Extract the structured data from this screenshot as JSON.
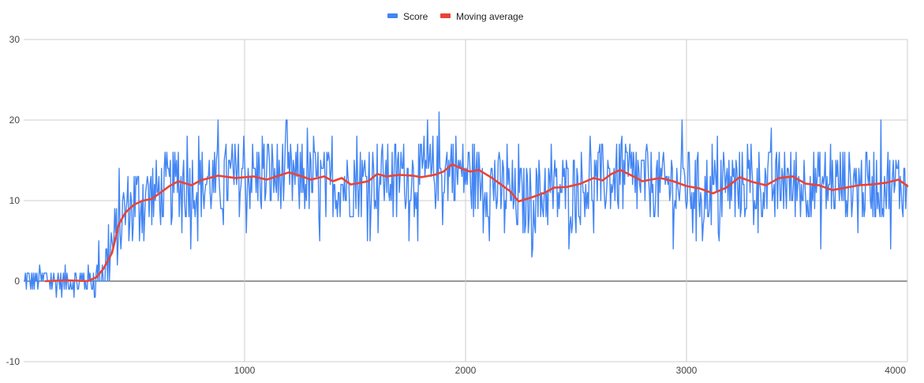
{
  "colors": {
    "score": "#4285f4",
    "moving_average": "#ea4335",
    "grid": "#cccccc",
    "zero_line": "#333333",
    "axis_text": "#444444"
  },
  "chart_data": {
    "type": "line",
    "title": "",
    "xlabel": "",
    "ylabel": "",
    "xlim": [
      0,
      4000
    ],
    "ylim": [
      -10,
      30
    ],
    "x_ticks": [
      1000,
      2000,
      3000,
      4000
    ],
    "y_ticks": [
      -10,
      0,
      10,
      20,
      30
    ],
    "x_tick_labels": [
      "1000",
      "2000",
      "3000",
      "4000"
    ],
    "y_tick_labels": [
      "-10",
      "0",
      "10",
      "20",
      "30"
    ],
    "grid": true,
    "legend_position": "top",
    "series": [
      {
        "name": "Score",
        "color": "#4285f4",
        "style": "noisy-line",
        "x_start": 0,
        "x_step": 10,
        "noise_amplitude": 4.5,
        "values_x": [
          0,
          200,
          300,
          350,
          400,
          450,
          500,
          600,
          700,
          800,
          1000,
          1200,
          1400,
          1500,
          1600,
          1800,
          1950,
          2100,
          2250,
          2400,
          2550,
          2700,
          2850,
          3000,
          3100,
          3250,
          3400,
          3550,
          3700,
          3850,
          4000
        ],
        "values": [
          0,
          0,
          0,
          1,
          4,
          8,
          10,
          11,
          12,
          12,
          13,
          13,
          12,
          12,
          13,
          13,
          14,
          12,
          10,
          11,
          12,
          13,
          12,
          12,
          11,
          12,
          12,
          12,
          12,
          12,
          12
        ]
      },
      {
        "name": "Moving average",
        "color": "#ea4335",
        "style": "smooth-line",
        "x": [
          100,
          200,
          290,
          330,
          360,
          400,
          430,
          460,
          500,
          540,
          580,
          620,
          660,
          700,
          760,
          800,
          880,
          960,
          1040,
          1100,
          1200,
          1260,
          1300,
          1360,
          1400,
          1440,
          1480,
          1520,
          1560,
          1600,
          1640,
          1700,
          1760,
          1800,
          1860,
          1900,
          1940,
          1980,
          2020,
          2060,
          2120,
          2160,
          2200,
          2240,
          2300,
          2360,
          2400,
          2460,
          2520,
          2580,
          2620,
          2660,
          2700,
          2760,
          2800,
          2880,
          2940,
          3000,
          3060,
          3120,
          3180,
          3240,
          3300,
          3360,
          3420,
          3480,
          3540,
          3600,
          3660,
          3720,
          3780,
          3840,
          3900,
          3960,
          4000
        ],
        "values": [
          0,
          0.1,
          0,
          0.5,
          1.5,
          3.5,
          7.0,
          8.5,
          9.5,
          10.0,
          10.2,
          11.0,
          11.8,
          12.4,
          11.9,
          12.5,
          13.1,
          12.8,
          13.0,
          12.6,
          13.5,
          13.0,
          12.6,
          13.0,
          12.4,
          12.8,
          12.0,
          12.2,
          12.4,
          13.3,
          13.0,
          13.2,
          13.1,
          12.9,
          13.2,
          13.6,
          14.5,
          14.0,
          13.6,
          13.8,
          12.8,
          12.0,
          11.2,
          9.9,
          10.4,
          11.0,
          11.6,
          11.7,
          12.1,
          12.8,
          12.5,
          13.3,
          13.8,
          13.0,
          12.4,
          12.8,
          12.4,
          11.8,
          11.5,
          10.9,
          11.6,
          12.9,
          12.3,
          11.9,
          12.8,
          13.0,
          12.1,
          11.9,
          11.3,
          11.6,
          11.9,
          12.0,
          12.2,
          12.6,
          11.8
        ]
      }
    ]
  }
}
